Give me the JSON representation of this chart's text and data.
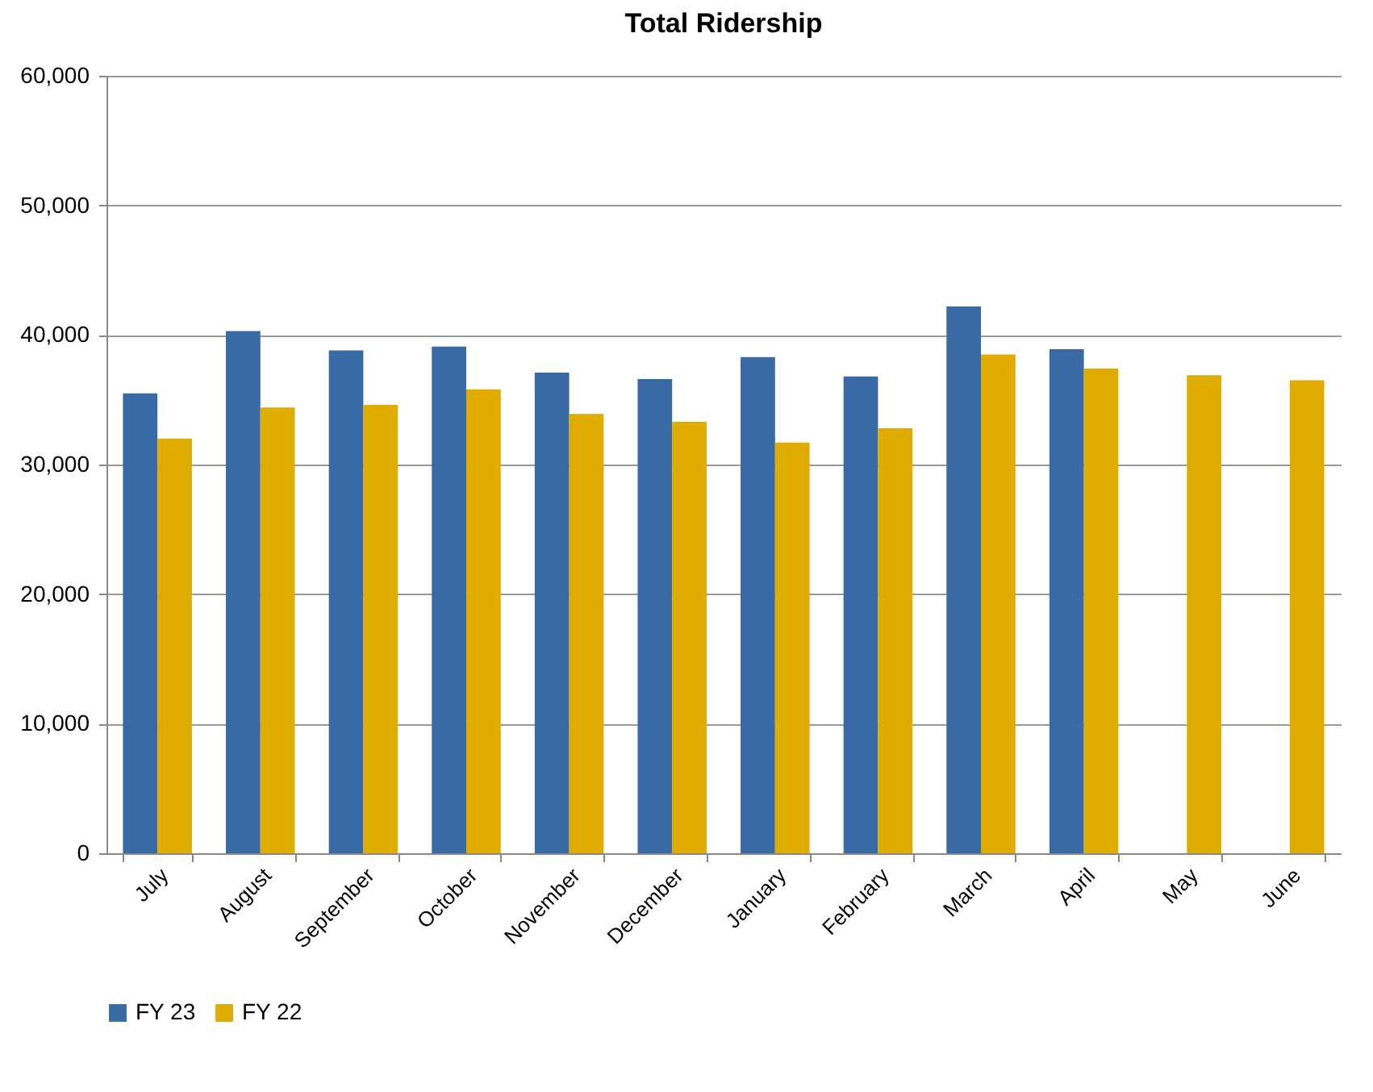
{
  "chart_data": {
    "type": "bar",
    "title": "Total Ridership",
    "categories": [
      "July",
      "August",
      "September",
      "October",
      "November",
      "December",
      "January",
      "February",
      "March",
      "April",
      "May",
      "June"
    ],
    "series": [
      {
        "name": "FY 23",
        "color": "#3a6aa6",
        "values": [
          35500,
          40300,
          38800,
          39100,
          37100,
          36600,
          38300,
          36800,
          42200,
          38900,
          null,
          null
        ]
      },
      {
        "name": "FY 22",
        "color": "#e0ac00",
        "values": [
          32000,
          34400,
          34600,
          35800,
          33900,
          33300,
          31700,
          32800,
          38500,
          37400,
          36900,
          36500
        ]
      }
    ],
    "ylim": [
      0,
      60000
    ],
    "yticks": [
      {
        "value": 0,
        "label": "0"
      },
      {
        "value": 10000,
        "label": "10,000"
      },
      {
        "value": 20000,
        "label": "20,000"
      },
      {
        "value": 30000,
        "label": "30,000"
      },
      {
        "value": 40000,
        "label": "40,000"
      },
      {
        "value": 50000,
        "label": "50,000"
      },
      {
        "value": 60000,
        "label": "60,000"
      }
    ],
    "grid": "y",
    "legend": "bottom"
  }
}
